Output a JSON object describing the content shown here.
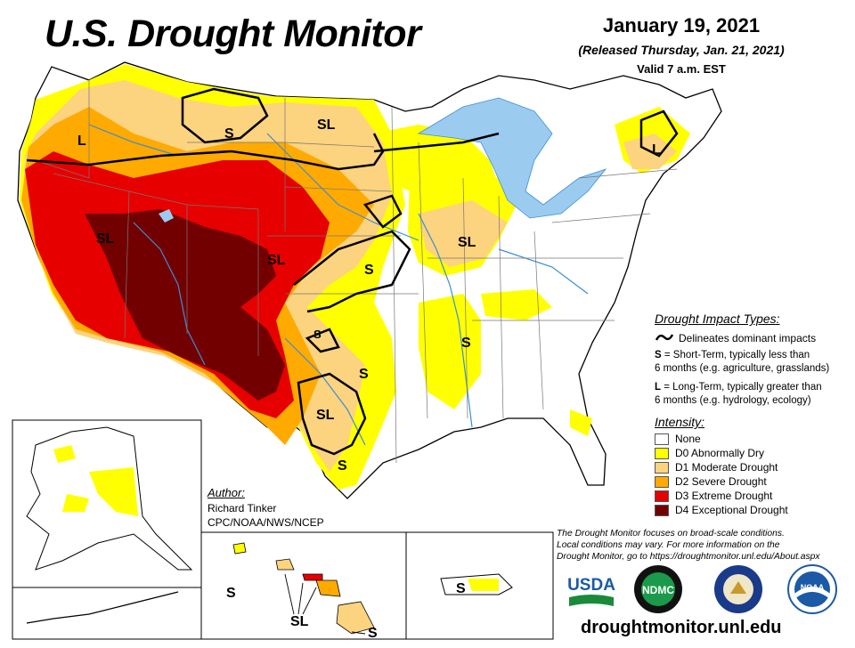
{
  "header": {
    "title": "U.S. Drought Monitor",
    "date": "January 19, 2021",
    "released": "(Released Thursday, Jan. 21, 2021)",
    "valid": "Valid 7 a.m. EST"
  },
  "impact_labels": {
    "s_north": "S",
    "sl_north": "SL",
    "l_west": "L",
    "sl_west": "SL",
    "sl_southwest": "SL",
    "s_plains": "S",
    "sl_midwest": "SL",
    "l_east": "L",
    "s_ok": "S",
    "s_tx_east": "S",
    "sl_texas": "SL",
    "s_tx_south": "S",
    "s_south": "S",
    "s_hawaii_west": "S",
    "sl_hawaii": "SL",
    "s_hawaii_south": "S",
    "s_puerto_rico": "S"
  },
  "impact_legend": {
    "title": "Drought Impact Types:",
    "delineates": "Delineates dominant impacts",
    "s_key": "S",
    "s_desc_1": " = Short-Term, typically less than",
    "s_desc_2": "6 months (e.g. agriculture, grasslands)",
    "l_key": "L",
    "l_desc_1": " = Long-Term, typically greater than",
    "l_desc_2": "6 months (e.g. hydrology, ecology)"
  },
  "intensity": {
    "title": "Intensity:",
    "items": [
      {
        "label": "None",
        "color": "#ffffff"
      },
      {
        "label": "D0 Abnormally Dry",
        "color": "#ffff00"
      },
      {
        "label": "D1 Moderate Drought",
        "color": "#fcd37f"
      },
      {
        "label": "D2 Severe Drought",
        "color": "#ffaa00"
      },
      {
        "label": "D3 Extreme Drought",
        "color": "#e60000"
      },
      {
        "label": "D4 Exceptional Drought",
        "color": "#730000"
      }
    ]
  },
  "author": {
    "title": "Author:",
    "name": "Richard Tinker",
    "org": "CPC/NOAA/NWS/NCEP"
  },
  "note": {
    "line1": "The Drought Monitor focuses on broad-scale conditions.",
    "line2": "Local conditions may vary. For more information on the",
    "line3": "Drought Monitor, go to https://droughtmonitor.unl.edu/About.aspx"
  },
  "logos": {
    "usda": "USDA",
    "ndmc": "NDMC",
    "noaa": "NOAA"
  },
  "footer": {
    "url": "droughtmonitor.unl.edu"
  },
  "colors": {
    "water": "#9ccbf0",
    "river": "#3a8fd6",
    "border": "#000000"
  }
}
